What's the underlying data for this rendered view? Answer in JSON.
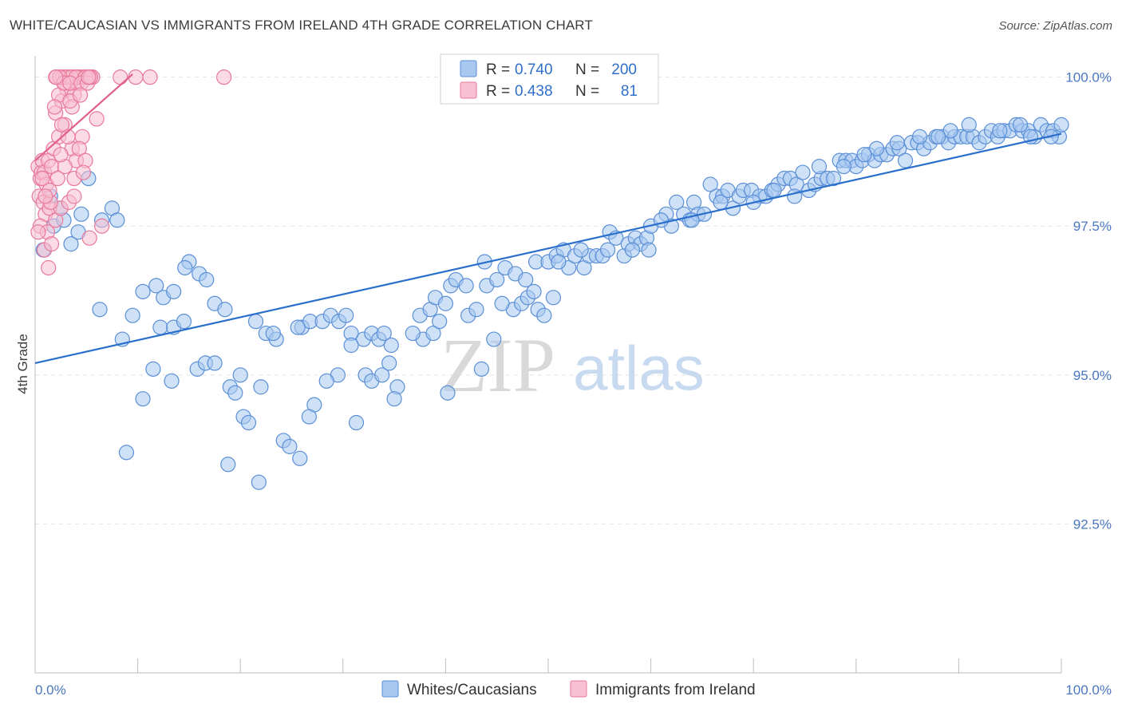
{
  "title": "WHITE/CAUCASIAN VS IMMIGRANTS FROM IRELAND 4TH GRADE CORRELATION CHART",
  "source": "Source: ZipAtlas.com",
  "watermark": {
    "zip": "ZIP",
    "atlas": "atlas"
  },
  "colors": {
    "blue_fill": "#a8c8f0",
    "blue_stroke": "#5b8fd6",
    "blue_line": "#2a6fcb",
    "pink_fill": "#f8c0d2",
    "pink_stroke": "#e8799c",
    "pink_line": "#e0608a",
    "grid": "#e2e2e2",
    "tick_text": "#4a78c0"
  },
  "legend": {
    "rows": [
      {
        "r_label": "R =",
        "r_value": "0.740",
        "n_label": "N =",
        "n_value": "200"
      },
      {
        "r_label": "R =",
        "r_value": "0.438",
        "n_label": "N =",
        "n_value": "81"
      }
    ]
  },
  "bottom_legend": [
    "Whites/Caucasians",
    "Immigrants from Ireland"
  ],
  "chart_data": {
    "type": "scatter",
    "title": "WHITE/CAUCASIAN VS IMMIGRANTS FROM IRELAND 4TH GRADE CORRELATION CHART",
    "xlabel": "",
    "ylabel": "4th Grade",
    "xlim": [
      0,
      100
    ],
    "ylim": [
      90.0,
      100.25
    ],
    "x_tick_labels": [
      "0.0%",
      "100.0%"
    ],
    "y_ticks": [
      92.5,
      95.0,
      97.5,
      100.0
    ],
    "y_tick_labels": [
      "92.5%",
      "95.0%",
      "97.5%",
      "100.0%"
    ],
    "grid": true,
    "legend_position": "top-center",
    "series": [
      {
        "name": "Whites/Caucasians",
        "r": 0.74,
        "n": 200,
        "trend": {
          "x": [
            0,
            100
          ],
          "y": [
            95.2,
            99.05
          ]
        },
        "points": [
          [
            0.8,
            97.1
          ],
          [
            1.5,
            98.0
          ],
          [
            2.5,
            97.8
          ],
          [
            1.8,
            97.5
          ],
          [
            3.5,
            97.2
          ],
          [
            4.5,
            97.7
          ],
          [
            2.8,
            97.6
          ],
          [
            5.2,
            98.3
          ],
          [
            7.5,
            97.8
          ],
          [
            6.5,
            97.6
          ],
          [
            4.2,
            97.4
          ],
          [
            8.0,
            97.6
          ],
          [
            6.3,
            96.1
          ],
          [
            10.5,
            96.4
          ],
          [
            11.8,
            96.5
          ],
          [
            12.5,
            96.3
          ],
          [
            13.5,
            96.4
          ],
          [
            9.5,
            96.0
          ],
          [
            8.5,
            95.6
          ],
          [
            15.0,
            96.9
          ],
          [
            16.0,
            96.7
          ],
          [
            16.7,
            96.6
          ],
          [
            12.2,
            95.8
          ],
          [
            13.5,
            95.8
          ],
          [
            14.5,
            95.9
          ],
          [
            17.5,
            96.2
          ],
          [
            18.5,
            96.1
          ],
          [
            21.5,
            95.9
          ],
          [
            22.5,
            95.7
          ],
          [
            23.5,
            95.6
          ],
          [
            26.0,
            95.8
          ],
          [
            26.8,
            95.9
          ],
          [
            10.5,
            94.6
          ],
          [
            11.5,
            95.1
          ],
          [
            13.3,
            94.9
          ],
          [
            15.8,
            95.1
          ],
          [
            16.6,
            95.2
          ],
          [
            17.5,
            95.2
          ],
          [
            19.0,
            94.8
          ],
          [
            19.5,
            94.7
          ],
          [
            22.0,
            94.8
          ],
          [
            20.3,
            94.3
          ],
          [
            20.8,
            94.2
          ],
          [
            24.2,
            93.9
          ],
          [
            24.8,
            93.8
          ],
          [
            25.8,
            93.6
          ],
          [
            18.8,
            93.5
          ],
          [
            21.8,
            93.2
          ],
          [
            8.9,
            93.7
          ],
          [
            25.6,
            95.8
          ],
          [
            28.0,
            95.9
          ],
          [
            28.8,
            96.0
          ],
          [
            29.6,
            95.9
          ],
          [
            30.3,
            96.0
          ],
          [
            30.8,
            95.7
          ],
          [
            32.0,
            95.6
          ],
          [
            32.8,
            95.7
          ],
          [
            33.5,
            95.6
          ],
          [
            34.0,
            95.7
          ],
          [
            29.5,
            95.0
          ],
          [
            32.2,
            95.0
          ],
          [
            32.8,
            94.9
          ],
          [
            33.8,
            95.0
          ],
          [
            34.5,
            95.2
          ],
          [
            35.3,
            94.8
          ],
          [
            35.0,
            94.6
          ],
          [
            27.2,
            94.5
          ],
          [
            26.7,
            94.3
          ],
          [
            31.3,
            94.2
          ],
          [
            37.8,
            95.6
          ],
          [
            38.8,
            95.7
          ],
          [
            37.5,
            96.0
          ],
          [
            38.5,
            96.1
          ],
          [
            39.0,
            96.3
          ],
          [
            40.0,
            96.2
          ],
          [
            40.5,
            96.5
          ],
          [
            41.0,
            96.6
          ],
          [
            42.2,
            96.0
          ],
          [
            43.0,
            96.1
          ],
          [
            44.0,
            96.5
          ],
          [
            45.0,
            96.6
          ],
          [
            45.8,
            96.8
          ],
          [
            46.6,
            96.1
          ],
          [
            47.4,
            96.2
          ],
          [
            48.0,
            96.3
          ],
          [
            48.6,
            96.4
          ],
          [
            49.0,
            96.1
          ],
          [
            49.6,
            96.0
          ],
          [
            50.5,
            96.3
          ],
          [
            43.8,
            96.9
          ],
          [
            46.8,
            96.7
          ],
          [
            44.7,
            95.6
          ],
          [
            40.2,
            94.7
          ],
          [
            43.5,
            95.1
          ],
          [
            48.8,
            96.9
          ],
          [
            50.0,
            96.9
          ],
          [
            50.8,
            97.0
          ],
          [
            51.5,
            97.1
          ],
          [
            52.0,
            96.8
          ],
          [
            52.6,
            97.0
          ],
          [
            53.5,
            96.8
          ],
          [
            54.0,
            97.0
          ],
          [
            54.7,
            97.0
          ],
          [
            55.3,
            97.0
          ],
          [
            56.0,
            97.4
          ],
          [
            56.6,
            97.3
          ],
          [
            57.4,
            97.0
          ],
          [
            57.8,
            97.2
          ],
          [
            58.5,
            97.3
          ],
          [
            59.0,
            97.2
          ],
          [
            59.6,
            97.3
          ],
          [
            60.0,
            97.5
          ],
          [
            59.8,
            97.1
          ],
          [
            61.5,
            97.7
          ],
          [
            62.0,
            97.5
          ],
          [
            62.5,
            97.9
          ],
          [
            63.2,
            97.7
          ],
          [
            63.8,
            97.6
          ],
          [
            64.2,
            97.9
          ],
          [
            64.6,
            97.7
          ],
          [
            65.2,
            97.7
          ],
          [
            65.8,
            98.2
          ],
          [
            66.4,
            98.0
          ],
          [
            67.0,
            98.0
          ],
          [
            67.5,
            98.1
          ],
          [
            68.0,
            97.8
          ],
          [
            68.6,
            98.0
          ],
          [
            69.0,
            98.1
          ],
          [
            69.8,
            98.1
          ],
          [
            70.6,
            98.0
          ],
          [
            71.2,
            98.0
          ],
          [
            71.8,
            98.1
          ],
          [
            72.4,
            98.2
          ],
          [
            73.0,
            98.3
          ],
          [
            73.6,
            98.3
          ],
          [
            74.2,
            98.2
          ],
          [
            74.8,
            98.4
          ],
          [
            75.4,
            98.1
          ],
          [
            76.0,
            98.2
          ],
          [
            76.6,
            98.3
          ],
          [
            77.2,
            98.3
          ],
          [
            77.8,
            98.3
          ],
          [
            78.4,
            98.6
          ],
          [
            79.0,
            98.6
          ],
          [
            79.6,
            98.6
          ],
          [
            80.0,
            98.5
          ],
          [
            80.6,
            98.6
          ],
          [
            81.2,
            98.7
          ],
          [
            81.8,
            98.6
          ],
          [
            82.4,
            98.7
          ],
          [
            83.0,
            98.7
          ],
          [
            83.6,
            98.8
          ],
          [
            84.2,
            98.8
          ],
          [
            84.8,
            98.6
          ],
          [
            85.4,
            98.9
          ],
          [
            86.0,
            98.9
          ],
          [
            86.6,
            98.8
          ],
          [
            87.2,
            98.9
          ],
          [
            87.8,
            99.0
          ],
          [
            88.4,
            99.0
          ],
          [
            89.0,
            98.9
          ],
          [
            89.6,
            99.0
          ],
          [
            90.2,
            99.0
          ],
          [
            90.8,
            99.0
          ],
          [
            91.4,
            99.0
          ],
          [
            92.0,
            98.9
          ],
          [
            92.6,
            99.0
          ],
          [
            93.2,
            99.1
          ],
          [
            93.8,
            99.0
          ],
          [
            94.4,
            99.1
          ],
          [
            95.0,
            99.1
          ],
          [
            95.6,
            99.2
          ],
          [
            96.2,
            99.1
          ],
          [
            96.8,
            99.1
          ],
          [
            97.4,
            99.0
          ],
          [
            98.0,
            99.2
          ],
          [
            98.6,
            99.1
          ],
          [
            99.2,
            99.1
          ],
          [
            99.8,
            99.0
          ],
          [
            100.0,
            99.2
          ],
          [
            94.0,
            99.1
          ],
          [
            96.0,
            99.2
          ],
          [
            97.0,
            99.0
          ],
          [
            99.0,
            99.0
          ],
          [
            91.0,
            99.2
          ],
          [
            89.2,
            99.1
          ],
          [
            88.0,
            99.0
          ],
          [
            86.2,
            99.0
          ],
          [
            84.0,
            98.9
          ],
          [
            82.0,
            98.8
          ],
          [
            80.8,
            98.7
          ],
          [
            78.8,
            98.5
          ],
          [
            76.4,
            98.5
          ],
          [
            74.0,
            98.0
          ],
          [
            72.0,
            98.1
          ],
          [
            70.0,
            97.9
          ],
          [
            66.8,
            97.9
          ],
          [
            64.0,
            97.6
          ],
          [
            61.0,
            97.6
          ],
          [
            58.2,
            97.1
          ],
          [
            55.8,
            97.1
          ],
          [
            53.2,
            97.1
          ],
          [
            51.0,
            96.9
          ],
          [
            47.8,
            96.6
          ],
          [
            45.5,
            96.2
          ],
          [
            42.0,
            96.5
          ],
          [
            39.4,
            95.9
          ],
          [
            36.8,
            95.7
          ],
          [
            34.7,
            95.5
          ],
          [
            30.8,
            95.5
          ],
          [
            28.4,
            94.9
          ],
          [
            23.2,
            95.7
          ],
          [
            20.0,
            95.0
          ],
          [
            14.6,
            96.8
          ]
        ]
      },
      {
        "name": "Immigrants from Ireland",
        "r": 0.438,
        "n": 81,
        "trend": {
          "x": [
            0,
            9.5
          ],
          "y": [
            98.6,
            100.05
          ]
        },
        "points": [
          [
            0.3,
            98.5
          ],
          [
            0.5,
            98.3
          ],
          [
            0.6,
            98.4
          ],
          [
            0.4,
            98.0
          ],
          [
            0.7,
            98.6
          ],
          [
            0.9,
            98.4
          ],
          [
            1.1,
            98.2
          ],
          [
            1.3,
            98.6
          ],
          [
            1.6,
            98.5
          ],
          [
            0.8,
            97.9
          ],
          [
            1.0,
            97.7
          ],
          [
            1.4,
            97.8
          ],
          [
            0.5,
            97.5
          ],
          [
            1.2,
            97.4
          ],
          [
            0.9,
            97.1
          ],
          [
            1.3,
            96.8
          ],
          [
            1.6,
            97.2
          ],
          [
            2.0,
            97.6
          ],
          [
            2.5,
            97.8
          ],
          [
            3.3,
            97.9
          ],
          [
            1.8,
            98.8
          ],
          [
            2.3,
            99.0
          ],
          [
            2.9,
            99.2
          ],
          [
            3.6,
            98.8
          ],
          [
            4.0,
            98.6
          ],
          [
            4.6,
            99.0
          ],
          [
            3.8,
            98.3
          ],
          [
            2.9,
            98.5
          ],
          [
            2.0,
            99.4
          ],
          [
            2.6,
            99.6
          ],
          [
            3.1,
            99.8
          ],
          [
            3.8,
            99.7
          ],
          [
            2.3,
            99.7
          ],
          [
            1.9,
            99.5
          ],
          [
            2.9,
            99.9
          ],
          [
            4.1,
            99.9
          ],
          [
            4.2,
            100.0
          ],
          [
            4.7,
            100.0
          ],
          [
            5.3,
            100.0
          ],
          [
            5.0,
            100.0
          ],
          [
            2.1,
            100.0
          ],
          [
            2.7,
            100.0
          ],
          [
            3.2,
            100.0
          ],
          [
            3.7,
            100.0
          ],
          [
            4.3,
            100.0
          ],
          [
            5.6,
            100.0
          ],
          [
            3.0,
            100.0
          ],
          [
            3.5,
            100.0
          ],
          [
            4.0,
            100.0
          ],
          [
            4.9,
            100.0
          ],
          [
            2.4,
            100.0
          ],
          [
            2.8,
            99.9
          ],
          [
            3.4,
            99.9
          ],
          [
            4.5,
            99.9
          ],
          [
            5.1,
            99.9
          ],
          [
            5.4,
            100.0
          ],
          [
            8.3,
            100.0
          ],
          [
            9.8,
            100.0
          ],
          [
            11.2,
            100.0
          ],
          [
            18.4,
            100.0
          ],
          [
            3.6,
            99.5
          ],
          [
            4.3,
            98.8
          ],
          [
            4.9,
            98.6
          ],
          [
            2.2,
            98.3
          ],
          [
            3.8,
            98.0
          ],
          [
            6.0,
            99.3
          ],
          [
            6.5,
            97.5
          ],
          [
            5.3,
            97.3
          ],
          [
            0.3,
            97.4
          ],
          [
            1.5,
            97.9
          ],
          [
            2.6,
            99.2
          ],
          [
            3.2,
            99.0
          ],
          [
            1.4,
            98.1
          ],
          [
            0.7,
            98.3
          ],
          [
            2.5,
            98.7
          ],
          [
            4.7,
            98.4
          ],
          [
            1.0,
            98.0
          ],
          [
            3.4,
            99.6
          ],
          [
            4.4,
            99.7
          ],
          [
            5.2,
            100.0
          ],
          [
            2.0,
            100.0
          ]
        ]
      }
    ]
  }
}
